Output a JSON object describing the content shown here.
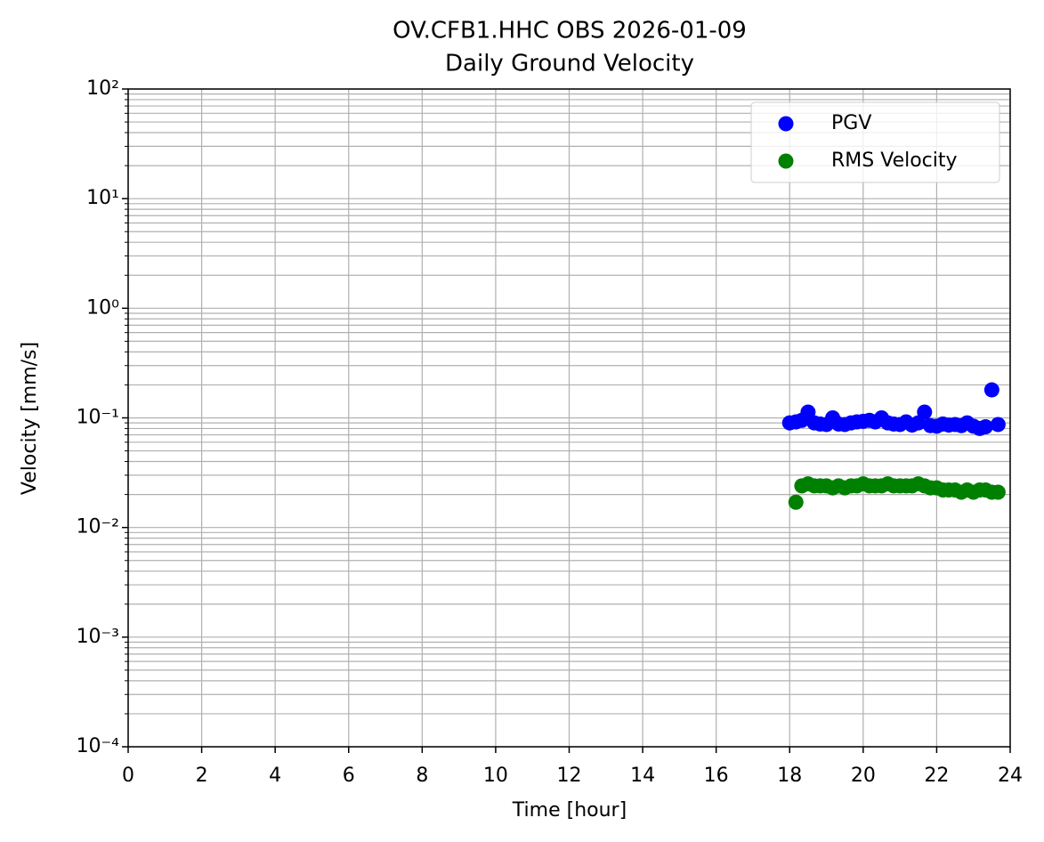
{
  "chart_data": {
    "type": "scatter",
    "title": "OV.CFB1.HHC OBS 2026-01-09",
    "subtitle": "Daily Ground Velocity",
    "x_label": "Time [hour]",
    "y_label": "Velocity [mm/s]",
    "log_y": true,
    "grid": true,
    "legend": "upper right",
    "xlim": [
      0,
      24
    ],
    "xticks": [
      0,
      2,
      4,
      6,
      8,
      10,
      12,
      14,
      16,
      18,
      20,
      22,
      24
    ],
    "ylim": [
      0.0001,
      100
    ],
    "yticks": [
      {
        "value": 0.0001,
        "label": "10⁻⁴"
      },
      {
        "value": 0.001,
        "label": "10⁻³"
      },
      {
        "value": 0.01,
        "label": "10⁻²"
      },
      {
        "value": 0.1,
        "label": "10⁻¹"
      },
      {
        "value": 1,
        "label": "10⁰"
      },
      {
        "value": 10,
        "label": "10¹"
      },
      {
        "value": 100,
        "label": "10²"
      }
    ],
    "yminorticks": [
      0.0002,
      0.0003,
      0.0004,
      0.0005,
      0.0006,
      0.0007,
      0.0008,
      0.0009,
      0.002,
      0.003,
      0.004,
      0.005,
      0.006,
      0.007,
      0.008,
      0.009,
      0.02,
      0.03,
      0.04,
      0.05,
      0.06,
      0.07,
      0.08,
      0.09,
      0.2,
      0.3,
      0.4,
      0.5,
      0.6,
      0.7,
      0.8,
      0.9,
      2,
      3,
      4,
      5,
      6,
      7,
      8,
      9,
      20,
      30,
      40,
      50,
      60,
      70,
      80,
      90
    ],
    "series": [
      {
        "name": "PGV",
        "color": "#0000ff",
        "x": [
          18.0,
          18.17,
          18.33,
          18.5,
          18.67,
          18.83,
          19.0,
          19.17,
          19.33,
          19.5,
          19.67,
          19.83,
          20.0,
          20.17,
          20.33,
          20.5,
          20.67,
          20.83,
          21.0,
          21.17,
          21.33,
          21.5,
          21.67,
          21.83,
          22.0,
          22.17,
          22.33,
          22.5,
          22.67,
          22.83,
          23.0,
          23.17,
          23.33,
          23.5,
          23.67
        ],
        "values": [
          0.09,
          0.092,
          0.095,
          0.113,
          0.09,
          0.088,
          0.087,
          0.1,
          0.088,
          0.087,
          0.09,
          0.092,
          0.093,
          0.095,
          0.092,
          0.1,
          0.09,
          0.088,
          0.087,
          0.092,
          0.086,
          0.09,
          0.113,
          0.085,
          0.084,
          0.088,
          0.086,
          0.087,
          0.085,
          0.09,
          0.084,
          0.08,
          0.083,
          0.18,
          0.087
        ]
      },
      {
        "name": "RMS Velocity",
        "color": "#008000",
        "x": [
          18.17,
          18.33,
          18.5,
          18.67,
          18.83,
          19.0,
          19.17,
          19.33,
          19.5,
          19.67,
          19.83,
          20.0,
          20.17,
          20.33,
          20.5,
          20.67,
          20.83,
          21.0,
          21.17,
          21.33,
          21.5,
          21.67,
          21.83,
          22.0,
          22.17,
          22.33,
          22.5,
          22.67,
          22.83,
          23.0,
          23.17,
          23.33,
          23.5,
          23.67
        ],
        "values": [
          0.017,
          0.024,
          0.025,
          0.024,
          0.024,
          0.024,
          0.023,
          0.024,
          0.023,
          0.024,
          0.024,
          0.025,
          0.024,
          0.024,
          0.024,
          0.025,
          0.024,
          0.024,
          0.024,
          0.024,
          0.025,
          0.024,
          0.023,
          0.023,
          0.022,
          0.022,
          0.022,
          0.021,
          0.022,
          0.021,
          0.022,
          0.022,
          0.021,
          0.021
        ]
      }
    ]
  }
}
